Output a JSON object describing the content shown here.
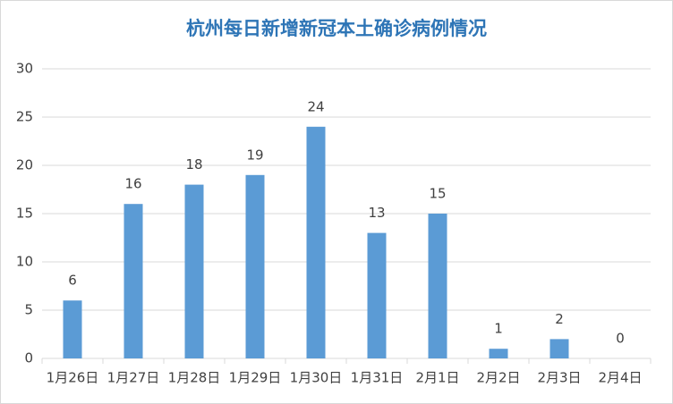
{
  "chart_data": {
    "type": "bar",
    "title": "杭州每日新增新冠本土确诊病例情况",
    "categories": [
      "1月26日",
      "1月27日",
      "1月28日",
      "1月29日",
      "1月30日",
      "1月31日",
      "2月1日",
      "2月2日",
      "2月3日",
      "2月4日"
    ],
    "values": [
      6,
      16,
      18,
      19,
      24,
      13,
      15,
      1,
      2,
      0
    ],
    "color": "#5b9bd5",
    "ylim": [
      0,
      30
    ],
    "yticks": [
      0,
      5,
      10,
      15,
      20,
      25,
      30
    ],
    "grid": true
  }
}
